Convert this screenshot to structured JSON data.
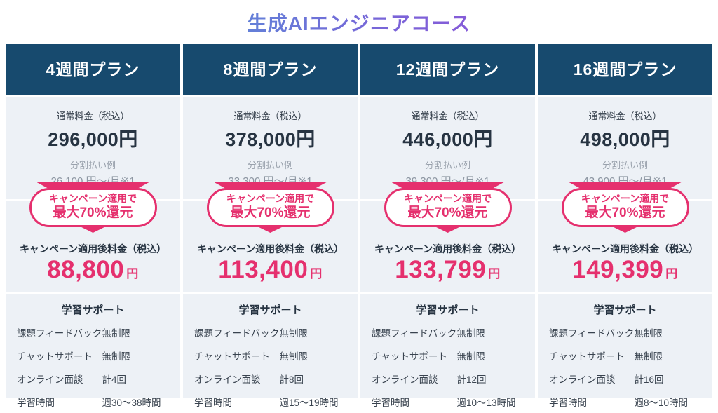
{
  "title": "生成AIエンジニアコース",
  "labels": {
    "normal_price": "通常料金（税込）",
    "installment_example": "分割払い例",
    "badge_line1": "キャンペーン適用で",
    "badge_line2": "最大70%還元",
    "campaign_price": "キャンペーン適用後料金（税込）",
    "support_title": "学習サポート",
    "yen": "円"
  },
  "support_labels": [
    "課題フィードバック",
    "チャットサポート",
    "オンライン面談",
    "学習時間"
  ],
  "plans": [
    {
      "name": "4週間プラン",
      "normal_price": "296,000円",
      "installment": "26,100 円〜/月※1",
      "campaign_price": "88,800",
      "support": [
        "無制限",
        "無制限",
        "計4回",
        "週30〜38時間"
      ]
    },
    {
      "name": "8週間プラン",
      "normal_price": "378,000円",
      "installment": "33,300 円〜/月※1",
      "campaign_price": "113,400",
      "support": [
        "無制限",
        "無制限",
        "計8回",
        "週15〜19時間"
      ]
    },
    {
      "name": "12週間プラン",
      "normal_price": "446,000円",
      "installment": "39,300 円〜/月※1",
      "campaign_price": "133,799",
      "support": [
        "無制限",
        "無制限",
        "計12回",
        "週10〜13時間"
      ]
    },
    {
      "name": "16週間プラン",
      "normal_price": "498,000円",
      "installment": "43,900 円〜/月※1",
      "campaign_price": "149,399",
      "support": [
        "無制限",
        "無制限",
        "計16回",
        "週8〜10時間"
      ]
    }
  ],
  "colors": {
    "header_navy": "#174a6e",
    "accent_pink": "#e5306e",
    "section_bg": "#edf1f6",
    "title_gradient_start": "#4e9bd8",
    "title_gradient_end": "#9b4ed8"
  }
}
